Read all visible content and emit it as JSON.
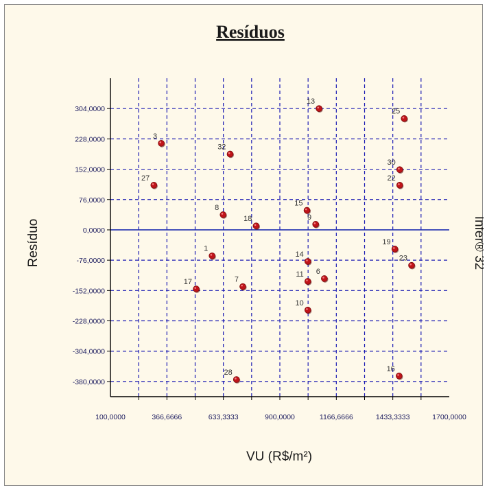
{
  "chart_data": {
    "type": "scatter",
    "title": "Resíduos",
    "xlabel": "VU (R$/m²)",
    "ylabel": "Resíduo",
    "side_label": "Infer® 32",
    "xlim": [
      100,
      1700
    ],
    "ylim": [
      -418,
      380
    ],
    "x_ticks": [
      100,
      366.6666,
      633.3333,
      900,
      1166.6666,
      1433.3333,
      1700
    ],
    "x_tick_labels": [
      "100,0000",
      "366,6666",
      "633,3333",
      "900,0000",
      "1166,6666",
      "1433,3333",
      "1700,0000"
    ],
    "x_grid": [
      233.3333,
      366.6666,
      500,
      633.3333,
      766.6666,
      900,
      1033.3333,
      1166.6666,
      1300,
      1433.3333,
      1566.6666
    ],
    "y_ticks": [
      304,
      228,
      152,
      76,
      0,
      -76,
      -152,
      -228,
      -304,
      -380
    ],
    "y_tick_labels": [
      "304,0000",
      "228,0000",
      "152,0000",
      "76,0000",
      "0,0000",
      "-76,0000",
      "-152,0000",
      "-228,0000",
      "-304,0000",
      "-380,0000"
    ],
    "grid": true,
    "zero_line": true,
    "colors": {
      "point": "#c0141a",
      "grid": "#1c1cb4",
      "zero": "#2030b0",
      "axis": "#000000"
    },
    "points": [
      {
        "label": "1",
        "x": 580,
        "y": -65
      },
      {
        "label": "3",
        "x": 340,
        "y": 217
      },
      {
        "label": "6",
        "x": 1110,
        "y": -122
      },
      {
        "label": "7",
        "x": 725,
        "y": -142
      },
      {
        "label": "8",
        "x": 632,
        "y": 38
      },
      {
        "label": "9",
        "x": 1069,
        "y": 14
      },
      {
        "label": "10",
        "x": 1032,
        "y": -201
      },
      {
        "label": "11",
        "x": 1032,
        "y": -129
      },
      {
        "label": "13",
        "x": 1085,
        "y": 304
      },
      {
        "label": "14",
        "x": 1032,
        "y": -79
      },
      {
        "label": "15",
        "x": 1028,
        "y": 49
      },
      {
        "label": "16",
        "x": 1463,
        "y": -366
      },
      {
        "label": "17",
        "x": 505,
        "y": -148
      },
      {
        "label": "18",
        "x": 788,
        "y": 10
      },
      {
        "label": "19",
        "x": 1443,
        "y": -48
      },
      {
        "label": "22",
        "x": 1466,
        "y": 112
      },
      {
        "label": "23",
        "x": 1522,
        "y": -89
      },
      {
        "label": "25",
        "x": 1487,
        "y": 279
      },
      {
        "label": "27",
        "x": 305,
        "y": 112
      },
      {
        "label": "28",
        "x": 695,
        "y": -375
      },
      {
        "label": "30",
        "x": 1466,
        "y": 151
      },
      {
        "label": "32",
        "x": 665,
        "y": 190
      }
    ]
  }
}
